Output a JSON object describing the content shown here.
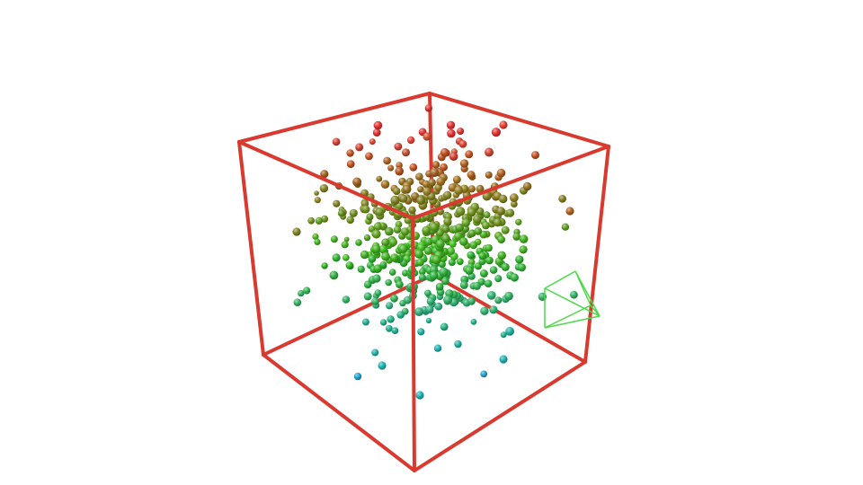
{
  "scene": {
    "background": "#ffffff",
    "bounding_box_color": "#d93a2f",
    "camera_frustum_color": "#4ed84a",
    "point_color_low": "#1aa7c8",
    "point_color_mid": "#39b81b",
    "point_color_high": "#e0372a",
    "point_count": 520
  }
}
